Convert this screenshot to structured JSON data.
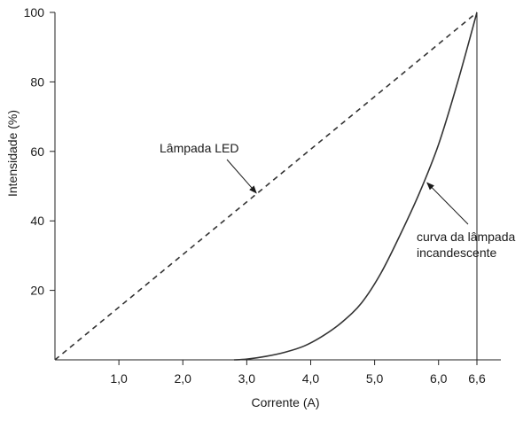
{
  "chart_data": {
    "type": "line",
    "title": "",
    "xlabel": "Corrente (A)",
    "ylabel": "Intensidade (%)",
    "xlim": [
      0,
      6.85
    ],
    "ylim": [
      0,
      100
    ],
    "x_ticks": [
      {
        "value": 1.0,
        "label": "1,0"
      },
      {
        "value": 2.0,
        "label": "2,0"
      },
      {
        "value": 3.0,
        "label": "3,0"
      },
      {
        "value": 4.0,
        "label": "4,0"
      },
      {
        "value": 5.0,
        "label": "5,0"
      },
      {
        "value": 6.0,
        "label": "6,0"
      },
      {
        "value": 6.6,
        "label": "6,6"
      }
    ],
    "y_ticks": [
      {
        "value": 20,
        "label": "20"
      },
      {
        "value": 40,
        "label": "40"
      },
      {
        "value": 60,
        "label": "60"
      },
      {
        "value": 80,
        "label": "80"
      },
      {
        "value": 100,
        "label": "100"
      }
    ],
    "series": [
      {
        "name": "Lâmpada LED",
        "style": "dashed",
        "color": "#333333",
        "points": [
          [
            0,
            0
          ],
          [
            6.6,
            100
          ]
        ]
      },
      {
        "name": "curva da lâmpada incandescente",
        "style": "solid",
        "color": "#333333",
        "points": [
          [
            2.8,
            0
          ],
          [
            3.0,
            0.2
          ],
          [
            3.3,
            1
          ],
          [
            3.6,
            2.2
          ],
          [
            3.9,
            4
          ],
          [
            4.2,
            7
          ],
          [
            4.5,
            11
          ],
          [
            4.8,
            16.5
          ],
          [
            5.1,
            25
          ],
          [
            5.4,
            36
          ],
          [
            5.7,
            48
          ],
          [
            6.0,
            62
          ],
          [
            6.3,
            80
          ],
          [
            6.6,
            100
          ]
        ]
      }
    ],
    "reference_lines": [
      {
        "orientation": "vertical",
        "x": 6.6,
        "y_from": 0,
        "y_to": 100
      }
    ],
    "annotations": [
      {
        "text": "Lâmpada LED",
        "series": 0,
        "arrow_to": {
          "x": 3.15,
          "y": 48
        }
      },
      {
        "text": "curva da lâmpada\nincandescente",
        "series": 1,
        "arrow_to": {
          "x": 5.82,
          "y": 51
        }
      }
    ],
    "grid": false,
    "legend": "none"
  }
}
